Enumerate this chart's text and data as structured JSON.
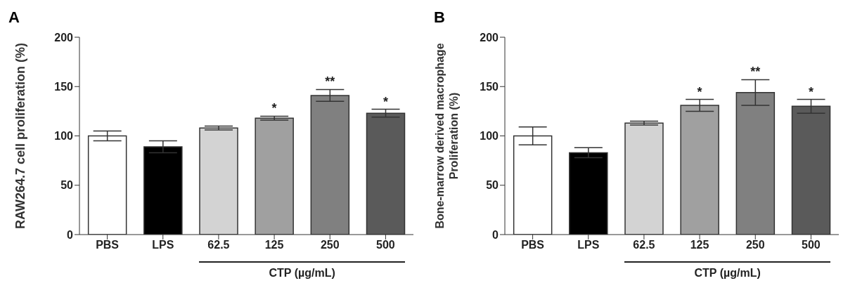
{
  "chart_data": [
    {
      "type": "bar",
      "title": "A",
      "ylabel": "RAW264.7 cell proliferation (%)",
      "xlabel": "CTP (µg/mL)",
      "categories": [
        "PBS",
        "LPS",
        "62.5",
        "125",
        "250",
        "500"
      ],
      "values": [
        100,
        89,
        108,
        118,
        141,
        123
      ],
      "errors": [
        5,
        6,
        2,
        2,
        6,
        4
      ],
      "colors": [
        "#ffffff",
        "#000000",
        "#d3d3d3",
        "#a0a0a0",
        "#808080",
        "#5a5a5a"
      ],
      "ylim": [
        0,
        200
      ],
      "yticks": [
        0,
        50,
        100,
        150,
        200
      ],
      "grid": false,
      "legend": false,
      "annotations": [
        {
          "text": "*",
          "x": "125",
          "y": 120
        },
        {
          "text": "**",
          "x": "250",
          "y": 147
        },
        {
          "text": "*",
          "x": "500",
          "y": 127
        }
      ]
    },
    {
      "type": "bar",
      "title": "B",
      "ylabel": "Bone-marrow derived macrophage\nProliferation (%)",
      "xlabel": "CTP (µg/mL)",
      "categories": [
        "PBS",
        "LPS",
        "62.5",
        "125",
        "250",
        "500"
      ],
      "values": [
        100,
        83,
        113,
        131,
        144,
        130
      ],
      "errors": [
        9,
        5,
        2,
        6,
        13,
        7
      ],
      "colors": [
        "#ffffff",
        "#000000",
        "#d3d3d3",
        "#a0a0a0",
        "#808080",
        "#5a5a5a"
      ],
      "ylim": [
        0,
        200
      ],
      "yticks": [
        0,
        50,
        100,
        150,
        200
      ],
      "grid": false,
      "legend": false,
      "annotations": [
        {
          "text": "*",
          "x": "125",
          "y": 137
        },
        {
          "text": "**",
          "x": "250",
          "y": 157
        },
        {
          "text": "*",
          "x": "500",
          "y": 137
        }
      ]
    }
  ]
}
